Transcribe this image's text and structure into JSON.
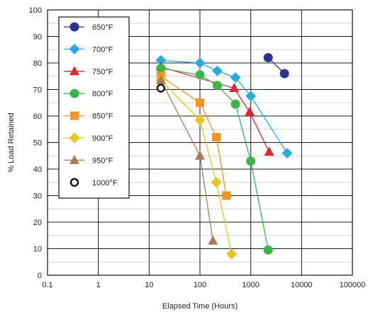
{
  "chart_data": {
    "type": "line",
    "xscale": "log",
    "xlabel": "Elapsed Time (Hours)",
    "ylabel": "% Load Retained",
    "xlim": [
      0.1,
      100000
    ],
    "ylim": [
      0,
      100
    ],
    "x_ticks": [
      "0.1",
      "1",
      "10",
      "100",
      "1000",
      "10000",
      "100000"
    ],
    "y_ticks": [
      "0",
      "10",
      "20",
      "30",
      "40",
      "50",
      "60",
      "70",
      "80",
      "90",
      "100"
    ],
    "grid": true,
    "minor_grid_y": true,
    "legend_position": "top-left",
    "series": [
      {
        "name": "650°F",
        "color": "#2e3192",
        "marker": "circle",
        "x": [
          2200,
          4600
        ],
        "y": [
          82,
          76
        ]
      },
      {
        "name": "700°F",
        "color": "#29abe2",
        "marker": "diamond",
        "x": [
          17,
          100,
          220,
          500,
          1000,
          5200
        ],
        "y": [
          81,
          80,
          77,
          74.5,
          67.5,
          46
        ]
      },
      {
        "name": "750°F",
        "color": "#e0282e",
        "marker": "triangle",
        "x": [
          17,
          470,
          950,
          2300
        ],
        "y": [
          78.5,
          70.5,
          61.5,
          46.5
        ]
      },
      {
        "name": "800°F",
        "color": "#39b54a",
        "marker": "circle",
        "x": [
          17,
          100,
          220,
          500,
          1000,
          2200
        ],
        "y": [
          78,
          75.5,
          71.5,
          64.5,
          43,
          9.5
        ]
      },
      {
        "name": "850°F",
        "color": "#f7931e",
        "marker": "square",
        "x": [
          17,
          100,
          210,
          330
        ],
        "y": [
          75,
          65,
          52,
          30
        ]
      },
      {
        "name": "900°F",
        "color": "#e6c619",
        "marker": "diamond",
        "x": [
          17,
          100,
          210,
          420
        ],
        "y": [
          73.5,
          58.5,
          35,
          8
        ]
      },
      {
        "name": "950°F",
        "color": "#a67c52",
        "marker": "triangle",
        "x": [
          17,
          100,
          180
        ],
        "y": [
          73.5,
          45,
          13
        ]
      },
      {
        "name": "1000°F",
        "color": "#111111",
        "marker": "open-circle",
        "x": [
          17
        ],
        "y": [
          70.5
        ]
      }
    ]
  }
}
